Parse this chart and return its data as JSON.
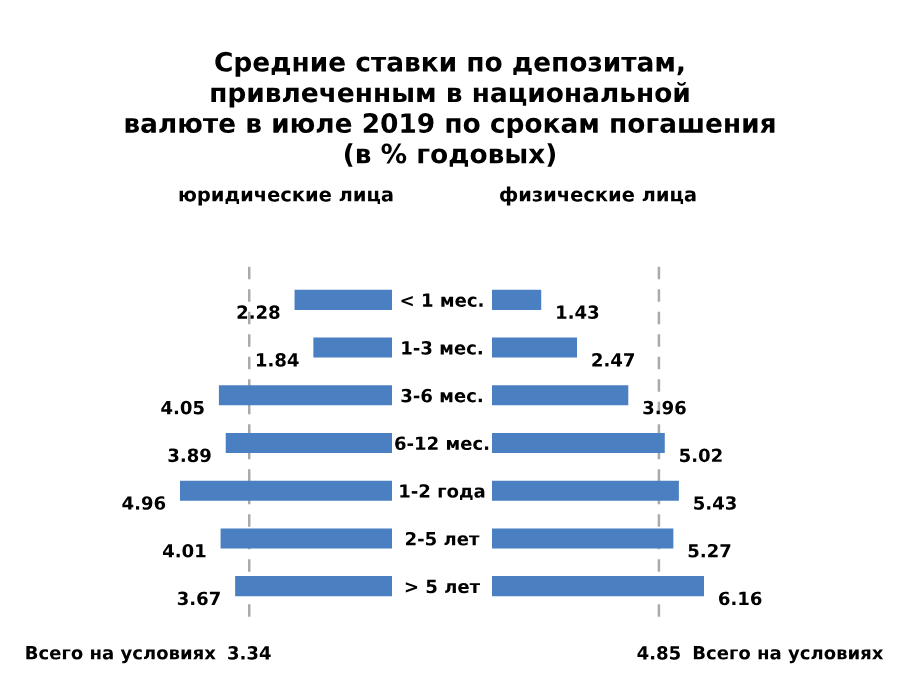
{
  "chart_data": [
    {
      "type": "bar",
      "orientation": "horizontal",
      "title": "Средние ставки по депозитам,\nпривлеченным в национальной\nвалюте в июле 2019 по срокам погашения\n(в % годовых)",
      "subtitle": "юридические лица",
      "categories": [
        null,
        null,
        null,
        null,
        null,
        null,
        null
      ],
      "values": [
        2.28,
        1.84,
        4.05,
        3.89,
        4.96,
        4.01,
        3.67
      ],
      "color": "#4a7fc1",
      "data_labels": true,
      "tick_labels": false,
      "ref_lines": [
        {
          "axis": "x",
          "value": 3.34,
          "label": "3.34",
          "color": "#aaaaaa",
          "line_style": "dashed"
        }
      ],
      "annotations": [
        "Всего на условиях"
      ]
    },
    {
      "type": "bar",
      "orientation": "horizontal",
      "subtitle": "физические лица",
      "categories": [
        "< 1 мес.",
        "1-3 мес.",
        "3-6 мес.",
        "6-12 мес.",
        "1-2 года",
        "2-5 лет",
        "> 5 лет"
      ],
      "values": [
        1.43,
        2.47,
        3.96,
        5.02,
        5.43,
        5.27,
        6.16
      ],
      "color": "#4a7fc1",
      "data_labels": true,
      "tick_labels": "y",
      "ref_lines": [
        {
          "axis": "x",
          "value": 4.85,
          "label": "4.85",
          "color": "#aaaaaa",
          "line_style": "dashed"
        }
      ],
      "annotations": [
        "Всего на условиях"
      ]
    }
  ]
}
